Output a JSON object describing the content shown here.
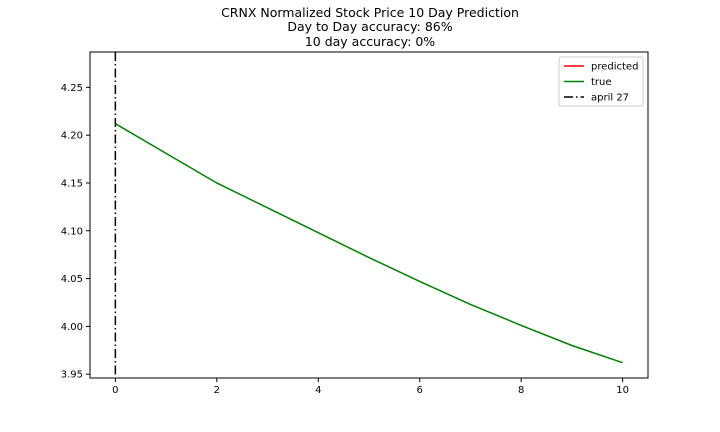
{
  "chart_data": {
    "type": "line",
    "title": "CRNX Normalized Stock Price 10 Day Prediction",
    "subtitle_lines": [
      "Day to Day accuracy: 86%",
      "10 day accuracy: 0%"
    ],
    "xlabel": "",
    "ylabel": "",
    "xlim": [
      -0.5,
      10.5
    ],
    "ylim": [
      3.946,
      4.287
    ],
    "xticks": [
      0,
      2,
      4,
      6,
      8,
      10
    ],
    "yticks": [
      3.95,
      4.0,
      4.05,
      4.1,
      4.15,
      4.2,
      4.25
    ],
    "ytick_labels": [
      "3.95",
      "4.00",
      "4.05",
      "4.10",
      "4.15",
      "4.20",
      "4.25"
    ],
    "grid": false,
    "legend_position": "upper right",
    "series": [
      {
        "name": "predicted",
        "color": "#ff0000",
        "x": [],
        "y": []
      },
      {
        "name": "true",
        "color": "#008000",
        "x": [
          0,
          1,
          2,
          3,
          4,
          5,
          6,
          7,
          8,
          9,
          10
        ],
        "y": [
          4.212,
          4.181,
          4.15,
          4.124,
          4.098,
          4.072,
          4.047,
          4.023,
          4.001,
          3.98,
          3.962
        ]
      }
    ],
    "vline": {
      "name": "april 27",
      "x": 0,
      "color": "#000000",
      "style": "dashdot"
    }
  }
}
